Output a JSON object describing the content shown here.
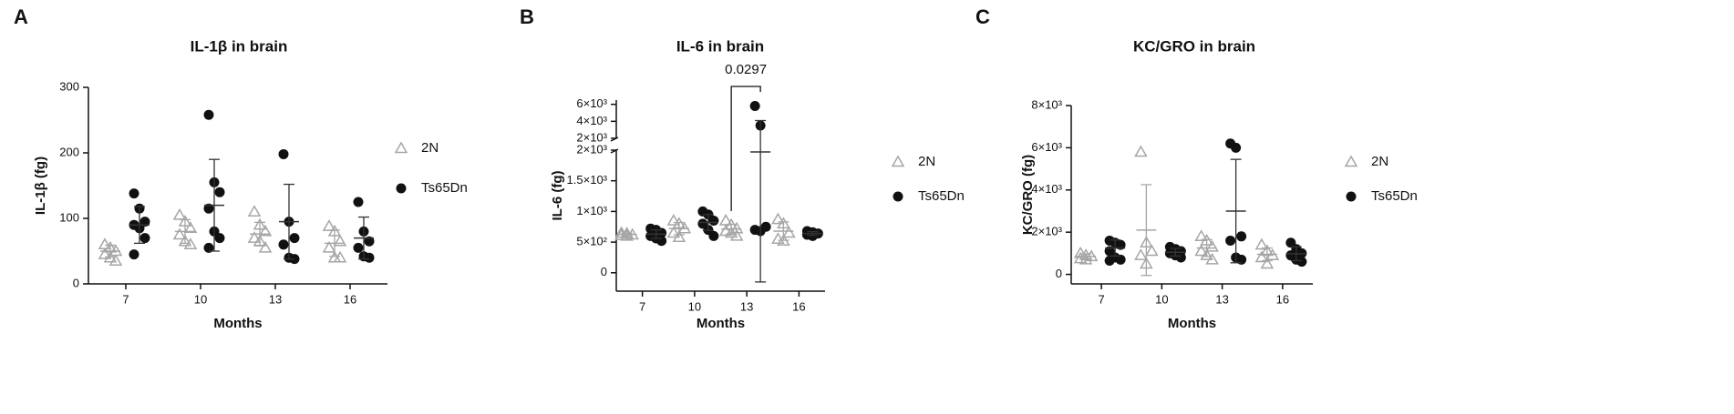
{
  "chart_data": [
    {
      "type": "dotplot",
      "panel": "A",
      "title": "IL-1β in brain",
      "ylabel": "IL-1β (fg)",
      "xlabel": "Months",
      "categories": [
        "7",
        "10",
        "13",
        "16"
      ],
      "ylim": [
        0,
        300
      ],
      "yticks": [
        0,
        100,
        200,
        300
      ],
      "series": [
        {
          "name": "2N",
          "color": "#a6a6a6",
          "marker": "triangle",
          "values": [
            [
              60,
              55,
              50,
              45,
              40,
              35
            ],
            [
              105,
              95,
              85,
              75,
              65,
              60
            ],
            [
              110,
              90,
              80,
              70,
              65,
              55
            ],
            [
              88,
              80,
              65,
              55,
              40,
              40
            ]
          ],
          "means": [
            50,
            80,
            76,
            62
          ],
          "sds": [
            9,
            18,
            18,
            20
          ]
        },
        {
          "name": "Ts65Dn",
          "color": "#111111",
          "marker": "circle",
          "values": [
            [
              138,
              115,
              95,
              90,
              85,
              70,
              45
            ],
            [
              258,
              155,
              140,
              115,
              80,
              70,
              55
            ],
            [
              198,
              95,
              70,
              60,
              40,
              38
            ],
            [
              125,
              80,
              65,
              55,
              42,
              40
            ]
          ],
          "means": [
            90,
            120,
            95,
            70
          ],
          "sds": [
            28,
            70,
            57,
            32
          ]
        }
      ]
    },
    {
      "type": "dotplot",
      "panel": "B",
      "title": "IL-6 in brain",
      "ylabel": "IL-6 (fg)",
      "xlabel": "Months",
      "categories": [
        "7",
        "10",
        "13",
        "16"
      ],
      "ylim": [
        -300,
        2000
      ],
      "yticks": [
        0,
        {
          "value": 500,
          "label": "5×10²"
        },
        {
          "value": 1000,
          "label": "1×10³"
        },
        {
          "value": 1500,
          "label": "1.5×10³"
        },
        {
          "value": 2000,
          "label": "2×10³"
        }
      ],
      "ylim_upper": [
        2000,
        6500
      ],
      "yticks_upper": [
        {
          "value": 2000,
          "label": "2×10³"
        },
        {
          "value": 4000,
          "label": "4×10³"
        },
        {
          "value": 6000,
          "label": "6×10³"
        }
      ],
      "annotation": "0.0297",
      "series": [
        {
          "name": "2N",
          "color": "#a6a6a6",
          "marker": "triangle",
          "values": [
            [
              650,
              640,
              620,
              610,
              600
            ],
            [
              850,
              800,
              720,
              650,
              580
            ],
            [
              850,
              780,
              720,
              680,
              650,
              600
            ],
            [
              870,
              800,
              650,
              550,
              520
            ]
          ],
          "means": [
            625,
            720,
            710,
            680
          ],
          "sds": [
            20,
            100,
            80,
            150
          ]
        },
        {
          "name": "Ts65Dn",
          "color": "#111111",
          "marker": "circle",
          "values": [
            [
              720,
              700,
              650,
              600,
              560,
              520
            ],
            [
              1000,
              950,
              850,
              800,
              700,
              600
            ],
            [
              5800,
              3500,
              750,
              700,
              680
            ],
            [
              680,
              660,
              640,
              620,
              600
            ]
          ],
          "means": [
            630,
            820,
            1970,
            640
          ],
          "sds": [
            70,
            130,
            2120,
            30
          ]
        }
      ]
    },
    {
      "type": "dotplot",
      "panel": "C",
      "title": "KC/GRO  in brain",
      "ylabel": "KC/GRO  (fg)",
      "xlabel": "Months",
      "categories": [
        "7",
        "10",
        "13",
        "16"
      ],
      "ylim": [
        -450,
        8000
      ],
      "yticks": [
        0,
        {
          "value": 2000,
          "label": "2×10³"
        },
        {
          "value": 4000,
          "label": "4×10³"
        },
        {
          "value": 6000,
          "label": "6×10³"
        },
        {
          "value": 8000,
          "label": "8×10³"
        }
      ],
      "series": [
        {
          "name": "2N",
          "color": "#a6a6a6",
          "marker": "triangle",
          "values": [
            [
              1000,
              900,
              850,
              750,
              700
            ],
            [
              5800,
              1500,
              1100,
              900,
              500
            ],
            [
              1800,
              1600,
              1300,
              1100,
              900,
              700
            ],
            [
              1400,
              1100,
              900,
              800,
              500
            ]
          ],
          "means": [
            850,
            2100,
            1250,
            950
          ],
          "sds": [
            120,
            2150,
            400,
            300
          ]
        },
        {
          "name": "Ts65Dn",
          "color": "#111111",
          "marker": "circle",
          "values": [
            [
              1600,
              1500,
              1400,
              1100,
              800,
              700,
              650
            ],
            [
              1300,
              1200,
              1100,
              1000,
              900,
              800
            ],
            [
              6200,
              6000,
              1800,
              1600,
              800,
              700
            ],
            [
              1500,
              1200,
              1000,
              900,
              700,
              600
            ]
          ],
          "means": [
            1250,
            1050,
            3000,
            980
          ],
          "sds": [
            380,
            180,
            2450,
            330
          ]
        }
      ]
    }
  ]
}
